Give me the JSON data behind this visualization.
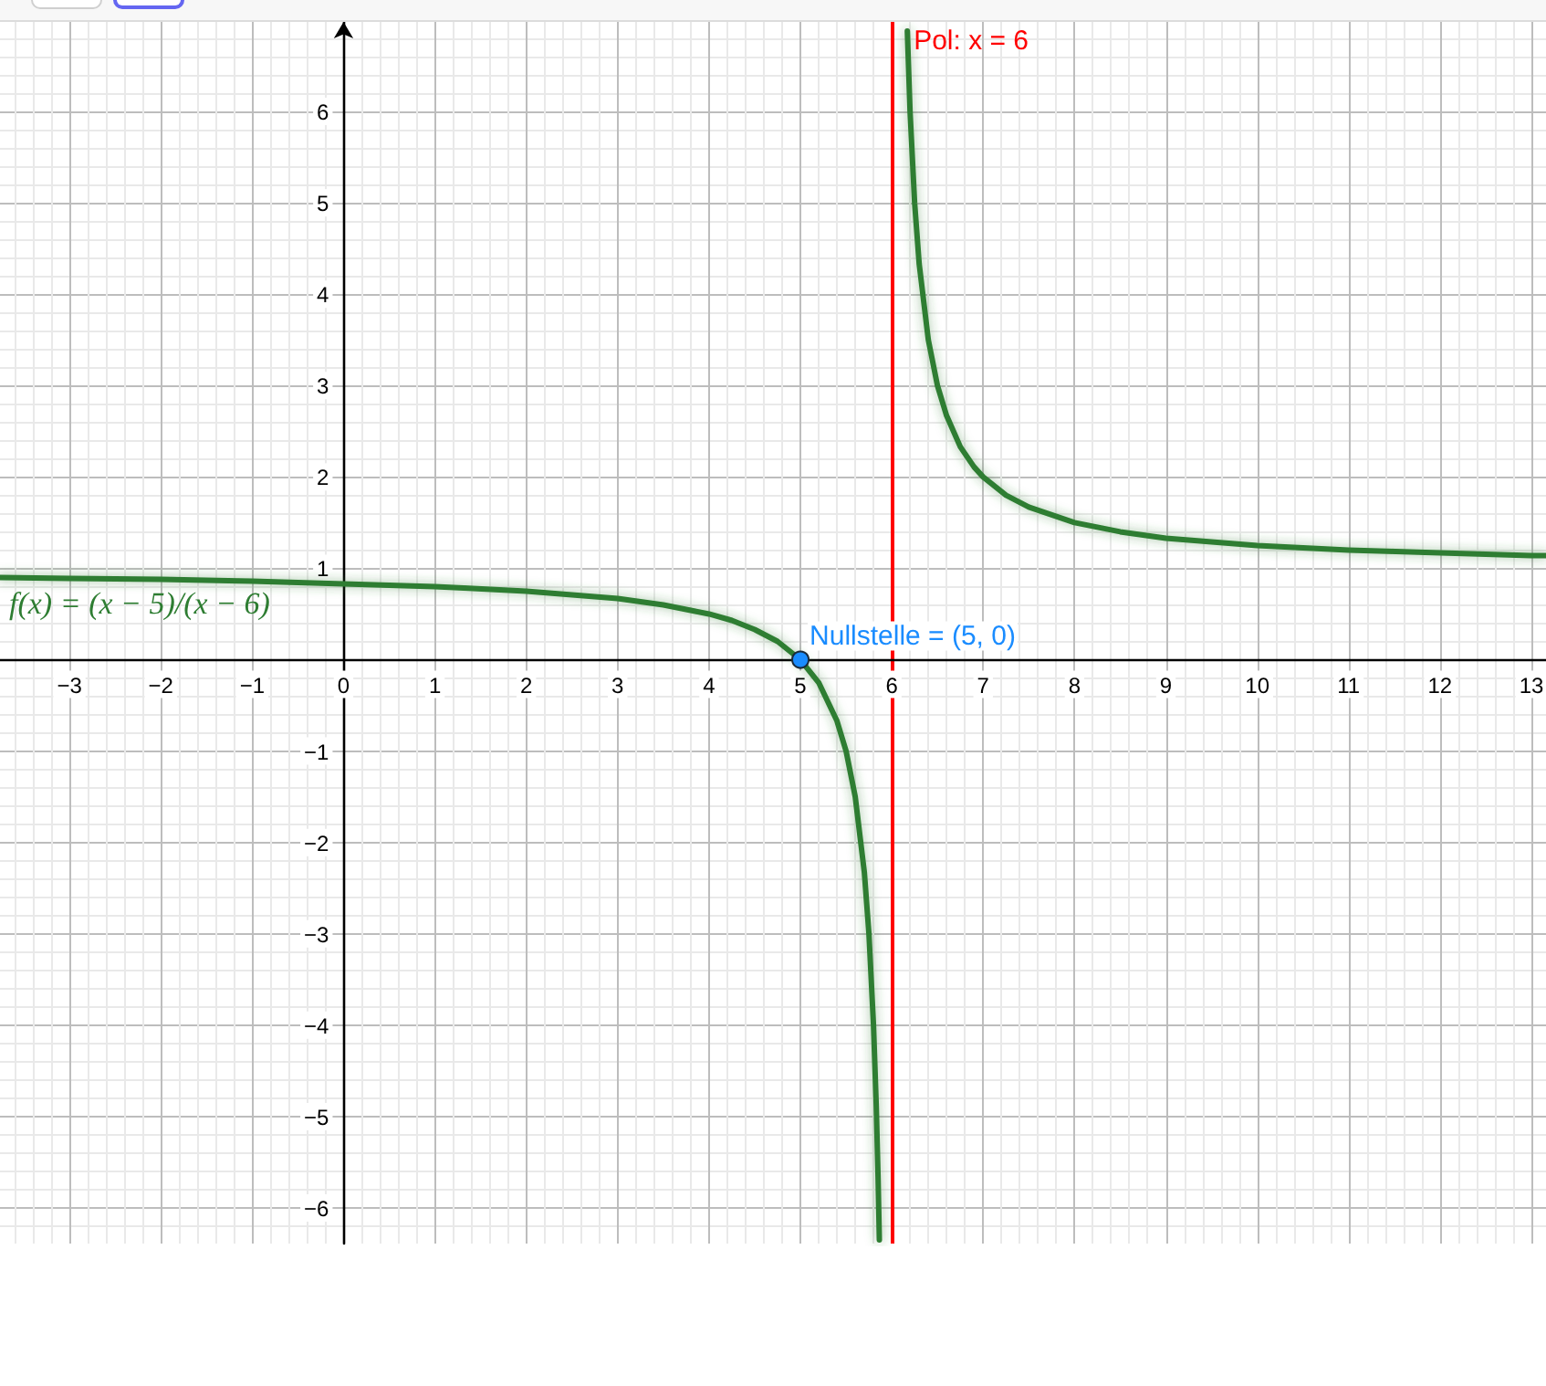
{
  "chart_data": {
    "type": "line",
    "xlim": [
      -3.76,
      13.16
    ],
    "ylim": [
      -6.39,
      6.98
    ],
    "xticks": [
      {
        "value": -3,
        "label": "−3"
      },
      {
        "value": -2,
        "label": "−2"
      },
      {
        "value": -1,
        "label": "−1"
      },
      0,
      1,
      2,
      3,
      4,
      5,
      6,
      7,
      8,
      9,
      10,
      11,
      12,
      13
    ],
    "yticks": [
      {
        "value": -6,
        "label": "−6"
      },
      {
        "value": -5,
        "label": "−5"
      },
      {
        "value": -4,
        "label": "−4"
      },
      {
        "value": -3,
        "label": "−3"
      },
      {
        "value": -2,
        "label": "−2"
      },
      {
        "value": -1,
        "label": "−1"
      },
      1,
      2,
      3,
      4,
      5,
      6
    ],
    "grid": true,
    "series": [
      {
        "name": "f(x) = (x − 5)/(x − 6)",
        "color": "#2e7d32",
        "x": [
          -3.76,
          -3,
          -2,
          -1,
          0,
          1,
          2,
          3,
          3.5,
          4,
          4.25,
          4.5,
          4.75,
          5,
          5.2,
          5.4,
          5.5,
          5.6,
          5.7,
          5.75,
          5.8,
          5.83,
          5.85,
          5.864,
          6,
          6.17,
          6.2,
          6.25,
          6.3,
          6.4,
          6.5,
          6.6,
          6.75,
          6.9,
          7,
          7.25,
          7.5,
          8,
          8.5,
          9,
          10,
          11,
          12,
          13,
          13.16
        ],
        "values": [
          0.9,
          0.89,
          0.88,
          0.86,
          0.83,
          0.8,
          0.75,
          0.67,
          0.6,
          0.5,
          0.43,
          0.33,
          0.2,
          0,
          -0.25,
          -0.67,
          -1,
          -1.5,
          -2.33,
          -3,
          -4,
          -4.88,
          -5.67,
          -6.35,
          null,
          6.88,
          6,
          5,
          4.33,
          3.5,
          3,
          2.67,
          2.33,
          2.11,
          2,
          1.8,
          1.67,
          1.5,
          1.4,
          1.33,
          1.25,
          1.2,
          1.17,
          1.14,
          1.14
        ]
      },
      {
        "type": "scatter",
        "color": "#1a8cff",
        "marker": "circle",
        "x": [
          5
        ],
        "values": [
          0
        ]
      }
    ],
    "ref_lines": [
      {
        "axis": "x",
        "value": 6,
        "label": "Pol: x = 6",
        "color": "#ff0000"
      }
    ],
    "annotations": [
      {
        "text": "Nullstelle = (5, 0)",
        "x": 5,
        "y": 0
      }
    ]
  }
}
